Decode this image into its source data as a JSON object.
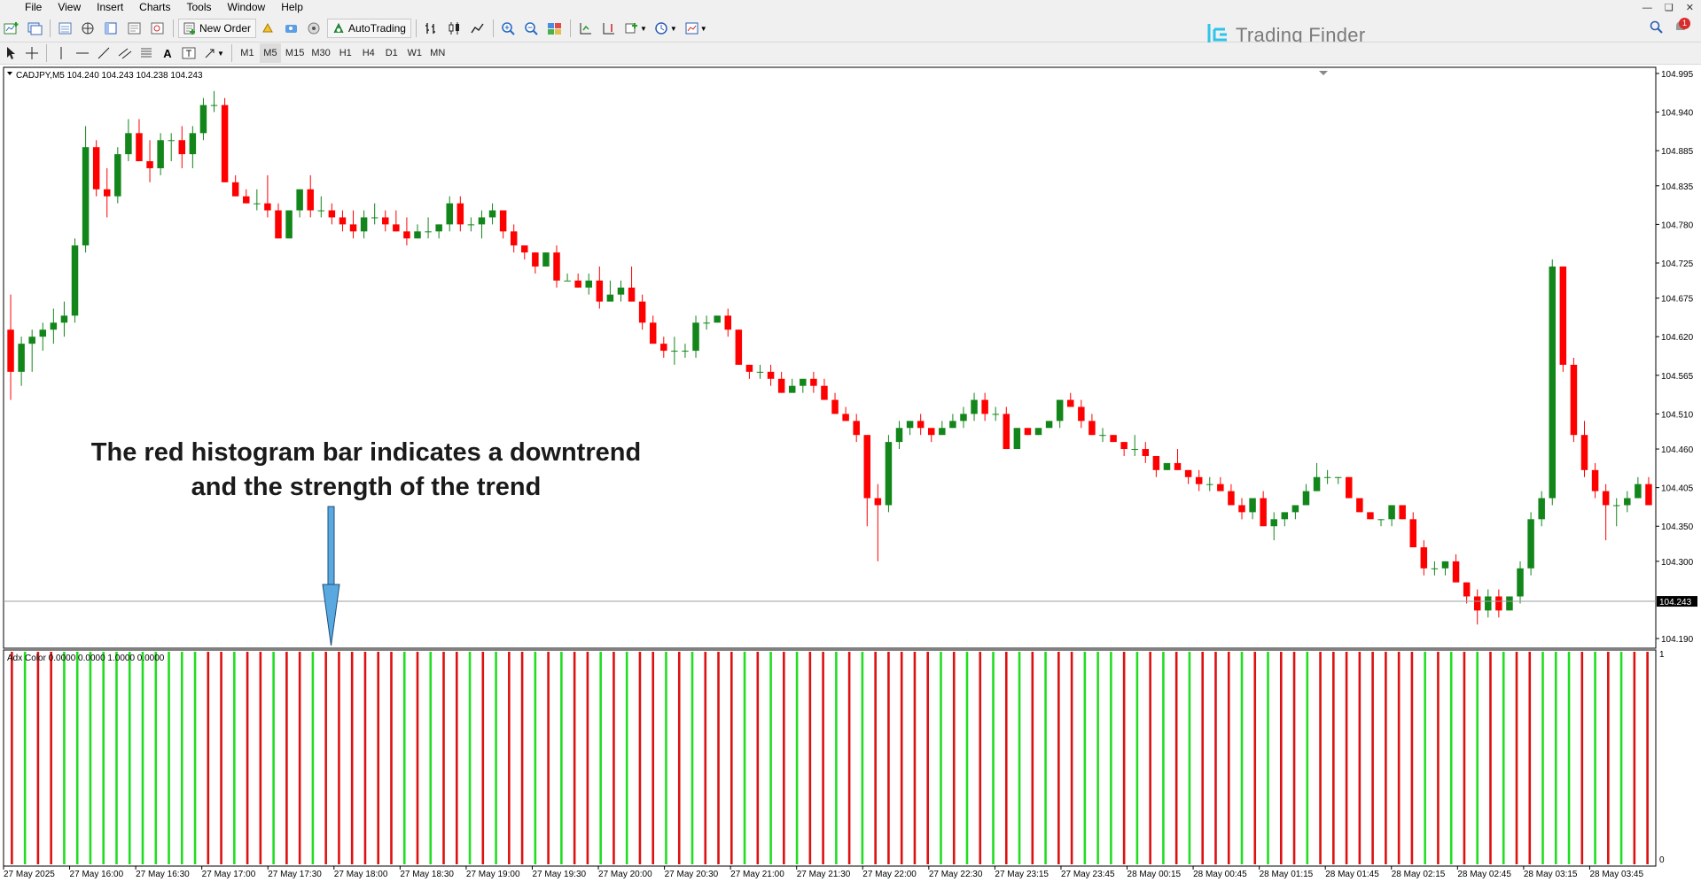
{
  "menu": [
    "File",
    "View",
    "Insert",
    "Charts",
    "Tools",
    "Window",
    "Help"
  ],
  "toolbar": {
    "new_order_label": "New Order",
    "autotrading_label": "AutoTrading",
    "timeframes": [
      "M1",
      "M5",
      "M15",
      "M30",
      "H1",
      "H4",
      "D1",
      "W1",
      "MN"
    ],
    "active_timeframe": "M5"
  },
  "logo_text": "Trading Finder",
  "notification_count": "1",
  "symbol_info": "CADJPY,M5  104.240 104.243 104.238 104.243",
  "current_price_label": "104.243",
  "indicator_label": "Adx Color 0.0000 0.0000 1.0000 0.0000",
  "annotation": {
    "line1": "The red histogram bar indicates a downtrend",
    "line2": "and the strength of the trend"
  },
  "price_axis": [
    "104.995",
    "104.940",
    "104.885",
    "104.835",
    "104.780",
    "104.725",
    "104.675",
    "104.620",
    "104.565",
    "104.510",
    "104.460",
    "104.405",
    "104.350",
    "104.300",
    "104.190"
  ],
  "indicator_axis": [
    "1",
    "0"
  ],
  "time_axis": [
    "27 May 2025",
    "27 May 16:00",
    "27 May 16:30",
    "27 May 17:00",
    "27 May 17:30",
    "27 May 18:00",
    "27 May 18:30",
    "27 May 19:00",
    "27 May 19:30",
    "27 May 20:00",
    "27 May 20:30",
    "27 May 21:00",
    "27 May 21:30",
    "27 May 22:00",
    "27 May 22:30",
    "27 May 23:15",
    "27 May 23:45",
    "28 May 00:15",
    "28 May 00:45",
    "28 May 01:15",
    "28 May 01:45",
    "28 May 02:15",
    "28 May 02:45",
    "28 May 03:15",
    "28 May 03:45"
  ],
  "colors": {
    "bull": "#12861a",
    "bear": "#ff0000",
    "hist_green": "#22dd22",
    "hist_red": "#dd1111",
    "hist_gray": "#8a8a8a",
    "arrow": "#5aa8e0",
    "logo": "#2ec4e8"
  },
  "chart_data": {
    "type": "candlestick",
    "symbol": "CADJPY",
    "timeframe": "M5",
    "current_price": 104.243,
    "ylim": [
      104.18,
      105.0
    ],
    "candles": [
      [
        104.63,
        104.68,
        104.53,
        104.57
      ],
      [
        104.57,
        104.62,
        104.55,
        104.61
      ],
      [
        104.61,
        104.63,
        104.57,
        104.62
      ],
      [
        104.62,
        104.64,
        104.6,
        104.63
      ],
      [
        104.63,
        104.66,
        104.61,
        104.64
      ],
      [
        104.64,
        104.67,
        104.62,
        104.65
      ],
      [
        104.65,
        104.76,
        104.64,
        104.75
      ],
      [
        104.75,
        104.92,
        104.74,
        104.89
      ],
      [
        104.89,
        104.9,
        104.82,
        104.83
      ],
      [
        104.83,
        104.86,
        104.79,
        104.82
      ],
      [
        104.82,
        104.89,
        104.81,
        104.88
      ],
      [
        104.88,
        104.93,
        104.87,
        104.91
      ],
      [
        104.91,
        104.93,
        104.87,
        104.87
      ],
      [
        104.87,
        104.9,
        104.84,
        104.86
      ],
      [
        104.86,
        104.91,
        104.85,
        104.9
      ],
      [
        104.9,
        104.91,
        104.87,
        104.9
      ],
      [
        104.9,
        104.92,
        104.86,
        104.88
      ],
      [
        104.88,
        104.92,
        104.86,
        104.91
      ],
      [
        104.91,
        104.96,
        104.9,
        104.95
      ],
      [
        104.95,
        104.97,
        104.94,
        104.95
      ],
      [
        104.95,
        104.96,
        104.84,
        104.84
      ],
      [
        104.84,
        104.85,
        104.82,
        104.82
      ],
      [
        104.82,
        104.83,
        104.81,
        104.81
      ],
      [
        104.81,
        104.83,
        104.8,
        104.81
      ],
      [
        104.81,
        104.85,
        104.79,
        104.8
      ],
      [
        104.8,
        104.81,
        104.76,
        104.76
      ],
      [
        104.76,
        104.8,
        104.76,
        104.8
      ],
      [
        104.8,
        104.83,
        104.79,
        104.83
      ],
      [
        104.83,
        104.85,
        104.79,
        104.8
      ],
      [
        104.8,
        104.82,
        104.79,
        104.8
      ],
      [
        104.8,
        104.81,
        104.78,
        104.79
      ],
      [
        104.79,
        104.8,
        104.77,
        104.78
      ],
      [
        104.78,
        104.8,
        104.76,
        104.77
      ],
      [
        104.77,
        104.8,
        104.76,
        104.79
      ],
      [
        104.79,
        104.81,
        104.78,
        104.79
      ],
      [
        104.79,
        104.8,
        104.77,
        104.78
      ],
      [
        104.78,
        104.8,
        104.77,
        104.77
      ],
      [
        104.77,
        104.79,
        104.75,
        104.76
      ],
      [
        104.76,
        104.78,
        104.76,
        104.77
      ],
      [
        104.77,
        104.79,
        104.76,
        104.77
      ],
      [
        104.77,
        104.78,
        104.76,
        104.78
      ],
      [
        104.78,
        104.82,
        104.77,
        104.81
      ],
      [
        104.81,
        104.82,
        104.77,
        104.78
      ],
      [
        104.78,
        104.79,
        104.77,
        104.78
      ],
      [
        104.78,
        104.8,
        104.76,
        104.79
      ],
      [
        104.79,
        104.81,
        104.78,
        104.8
      ],
      [
        104.8,
        104.8,
        104.76,
        104.77
      ],
      [
        104.77,
        104.78,
        104.74,
        104.75
      ],
      [
        104.75,
        104.75,
        104.73,
        104.74
      ],
      [
        104.74,
        104.74,
        104.71,
        104.72
      ],
      [
        104.72,
        104.74,
        104.72,
        104.74
      ],
      [
        104.74,
        104.75,
        104.69,
        104.7
      ],
      [
        104.7,
        104.71,
        104.7,
        104.7
      ],
      [
        104.7,
        104.71,
        104.69,
        104.69
      ],
      [
        104.69,
        104.71,
        104.68,
        104.7
      ],
      [
        104.7,
        104.72,
        104.66,
        104.67
      ],
      [
        104.67,
        104.7,
        104.67,
        104.68
      ],
      [
        104.68,
        104.7,
        104.67,
        104.69
      ],
      [
        104.69,
        104.72,
        104.67,
        104.67
      ],
      [
        104.67,
        104.68,
        104.63,
        104.64
      ],
      [
        104.64,
        104.65,
        104.61,
        104.61
      ],
      [
        104.61,
        104.62,
        104.59,
        104.6
      ],
      [
        104.6,
        104.62,
        104.58,
        104.6
      ],
      [
        104.6,
        104.61,
        104.59,
        104.6
      ],
      [
        104.6,
        104.65,
        104.59,
        104.64
      ],
      [
        104.64,
        104.65,
        104.63,
        104.64
      ],
      [
        104.64,
        104.65,
        104.64,
        104.65
      ],
      [
        104.65,
        104.66,
        104.62,
        104.63
      ],
      [
        104.63,
        104.63,
        104.58,
        104.58
      ],
      [
        104.58,
        104.58,
        104.56,
        104.57
      ],
      [
        104.57,
        104.58,
        104.56,
        104.57
      ],
      [
        104.57,
        104.58,
        104.55,
        104.56
      ],
      [
        104.56,
        104.57,
        104.54,
        104.54
      ],
      [
        104.54,
        104.56,
        104.54,
        104.55
      ],
      [
        104.55,
        104.56,
        104.54,
        104.56
      ],
      [
        104.56,
        104.57,
        104.54,
        104.55
      ],
      [
        104.55,
        104.56,
        104.53,
        104.53
      ],
      [
        104.53,
        104.54,
        104.51,
        104.51
      ],
      [
        104.51,
        104.52,
        104.5,
        104.5
      ],
      [
        104.5,
        104.51,
        104.47,
        104.48
      ],
      [
        104.48,
        104.48,
        104.35,
        104.39
      ],
      [
        104.39,
        104.41,
        104.3,
        104.38
      ],
      [
        104.38,
        104.48,
        104.37,
        104.47
      ],
      [
        104.47,
        104.5,
        104.46,
        104.49
      ],
      [
        104.49,
        104.5,
        104.48,
        104.5
      ],
      [
        104.5,
        104.51,
        104.48,
        104.49
      ],
      [
        104.49,
        104.49,
        104.47,
        104.48
      ],
      [
        104.48,
        104.5,
        104.48,
        104.49
      ],
      [
        104.49,
        104.51,
        104.49,
        104.5
      ],
      [
        104.5,
        104.52,
        104.49,
        104.51
      ],
      [
        104.51,
        104.54,
        104.5,
        104.53
      ],
      [
        104.53,
        104.54,
        104.5,
        104.51
      ],
      [
        104.51,
        104.52,
        104.5,
        104.51
      ],
      [
        104.51,
        104.52,
        104.46,
        104.46
      ],
      [
        104.46,
        104.49,
        104.46,
        104.49
      ],
      [
        104.49,
        104.49,
        104.48,
        104.48
      ],
      [
        104.48,
        104.49,
        104.48,
        104.49
      ],
      [
        104.49,
        104.5,
        104.49,
        104.5
      ],
      [
        104.5,
        104.53,
        104.49,
        104.53
      ],
      [
        104.53,
        104.54,
        104.52,
        104.52
      ],
      [
        104.52,
        104.53,
        104.49,
        104.5
      ],
      [
        104.5,
        104.51,
        104.48,
        104.48
      ],
      [
        104.48,
        104.49,
        104.47,
        104.48
      ],
      [
        104.48,
        104.48,
        104.47,
        104.47
      ],
      [
        104.47,
        104.47,
        104.45,
        104.46
      ],
      [
        104.46,
        104.48,
        104.45,
        104.46
      ],
      [
        104.46,
        104.47,
        104.44,
        104.45
      ],
      [
        104.45,
        104.45,
        104.42,
        104.43
      ],
      [
        104.43,
        104.44,
        104.43,
        104.44
      ],
      [
        104.44,
        104.46,
        104.43,
        104.43
      ],
      [
        104.43,
        104.43,
        104.41,
        104.42
      ],
      [
        104.42,
        104.43,
        104.4,
        104.41
      ],
      [
        104.41,
        104.42,
        104.4,
        104.41
      ],
      [
        104.41,
        104.42,
        104.4,
        104.4
      ],
      [
        104.4,
        104.41,
        104.38,
        104.38
      ],
      [
        104.38,
        104.39,
        104.36,
        104.37
      ],
      [
        104.37,
        104.39,
        104.36,
        104.39
      ],
      [
        104.39,
        104.4,
        104.35,
        104.35
      ],
      [
        104.35,
        104.37,
        104.33,
        104.36
      ],
      [
        104.36,
        104.37,
        104.35,
        104.37
      ],
      [
        104.37,
        104.38,
        104.36,
        104.38
      ],
      [
        104.38,
        104.41,
        104.38,
        104.4
      ],
      [
        104.4,
        104.44,
        104.4,
        104.42
      ],
      [
        104.42,
        104.43,
        104.41,
        104.42
      ],
      [
        104.42,
        104.42,
        104.41,
        104.42
      ],
      [
        104.42,
        104.42,
        104.39,
        104.39
      ],
      [
        104.39,
        104.39,
        104.37,
        104.37
      ],
      [
        104.37,
        104.37,
        104.36,
        104.36
      ],
      [
        104.36,
        104.36,
        104.35,
        104.36
      ],
      [
        104.36,
        104.38,
        104.35,
        104.38
      ],
      [
        104.38,
        104.38,
        104.36,
        104.36
      ],
      [
        104.36,
        104.37,
        104.32,
        104.32
      ],
      [
        104.32,
        104.33,
        104.28,
        104.29
      ],
      [
        104.29,
        104.3,
        104.28,
        104.29
      ],
      [
        104.29,
        104.3,
        104.28,
        104.3
      ],
      [
        104.3,
        104.31,
        104.27,
        104.27
      ],
      [
        104.27,
        104.27,
        104.24,
        104.25
      ],
      [
        104.25,
        104.26,
        104.21,
        104.23
      ],
      [
        104.23,
        104.26,
        104.22,
        104.25
      ],
      [
        104.25,
        104.26,
        104.22,
        104.23
      ],
      [
        104.23,
        104.25,
        104.23,
        104.25
      ],
      [
        104.25,
        104.3,
        104.24,
        104.29
      ],
      [
        104.29,
        104.37,
        104.28,
        104.36
      ],
      [
        104.36,
        104.4,
        104.35,
        104.39
      ],
      [
        104.39,
        104.73,
        104.38,
        104.72
      ],
      [
        104.72,
        104.72,
        104.57,
        104.58
      ],
      [
        104.58,
        104.59,
        104.47,
        104.48
      ],
      [
        104.48,
        104.5,
        104.42,
        104.43
      ],
      [
        104.43,
        104.44,
        104.39,
        104.4
      ],
      [
        104.4,
        104.41,
        104.33,
        104.38
      ],
      [
        104.38,
        104.39,
        104.35,
        104.38
      ],
      [
        104.38,
        104.4,
        104.37,
        104.39
      ],
      [
        104.39,
        104.42,
        104.39,
        104.41
      ],
      [
        104.41,
        104.42,
        104.38,
        104.38
      ]
    ]
  },
  "histogram_pattern": "rgrrgggggggggggrrgrrgrrgrrrrrrgrgrrgrgrrgrgrrgrgrrgrgrrrgrgrgrrgrgrrrrrgrgrgrgrgrrgggrgrgrgrrrgrgrrgrrrrrrrrgrgrgrgrrgggrgrgrr"
}
